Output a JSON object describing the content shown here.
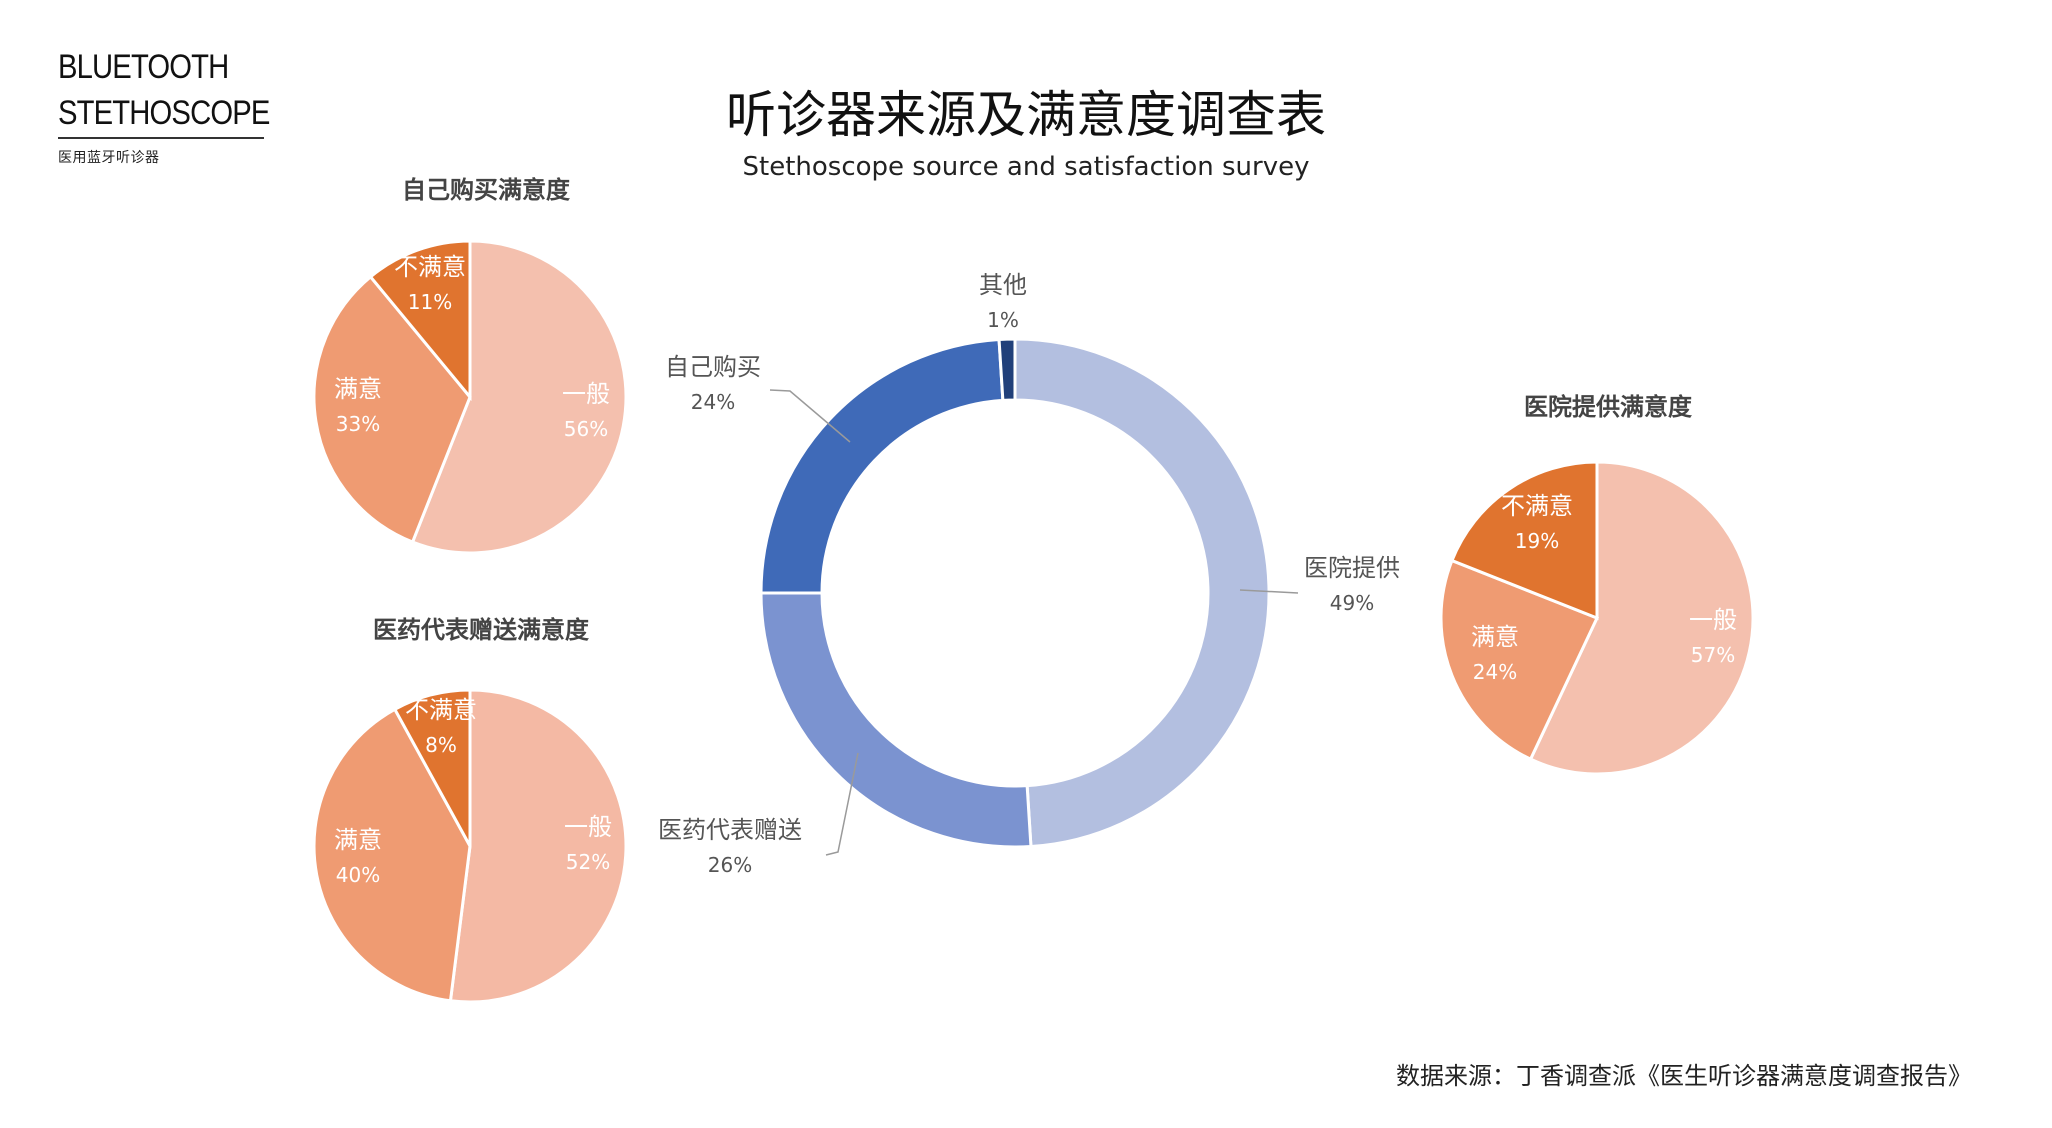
{
  "logo": {
    "line1": "BLUETOOTH",
    "line2": "STETHOSCOPE",
    "subtitle": "医用蓝牙听诊器"
  },
  "title": "听诊器来源及满意度调查表",
  "subtitle": "Stethoscope source and satisfaction survey",
  "source_note": "数据来源：丁香调查派《医生听诊器满意度调查报告》",
  "chart_data": [
    {
      "type": "pie",
      "variant": "donut",
      "title": "",
      "categories": [
        "医院提供",
        "医药代表赠送",
        "自己购买",
        "其他"
      ],
      "values": [
        49,
        26,
        24,
        1
      ],
      "value_labels": [
        "49%",
        "26%",
        "24%",
        "1%"
      ],
      "colors": [
        "#b3bfe0",
        "#7b93d0",
        "#3f6ab8",
        "#21407a"
      ],
      "legend": "none"
    },
    {
      "type": "pie",
      "title": "自己购买满意度",
      "categories": [
        "一般",
        "满意",
        "不满意"
      ],
      "values": [
        56,
        33,
        11
      ],
      "value_labels": [
        "56%",
        "33%",
        "11%"
      ],
      "colors": [
        "#f4c0ae",
        "#ef9b72",
        "#e0742f"
      ],
      "legend": "none"
    },
    {
      "type": "pie",
      "title": "医药代表赠送满意度",
      "categories": [
        "一般",
        "满意",
        "不满意"
      ],
      "values": [
        52,
        40,
        8
      ],
      "value_labels": [
        "52%",
        "40%",
        "8%"
      ],
      "colors": [
        "#f4b9a4",
        "#ef9b72",
        "#e0742f"
      ],
      "legend": "none"
    },
    {
      "type": "pie",
      "title": "医院提供满意度",
      "categories": [
        "一般",
        "满意",
        "不满意"
      ],
      "values": [
        57,
        24,
        19
      ],
      "value_labels": [
        "57%",
        "24%",
        "19%"
      ],
      "colors": [
        "#f4c0ae",
        "#ef9b72",
        "#e0742f"
      ],
      "legend": "none"
    }
  ]
}
